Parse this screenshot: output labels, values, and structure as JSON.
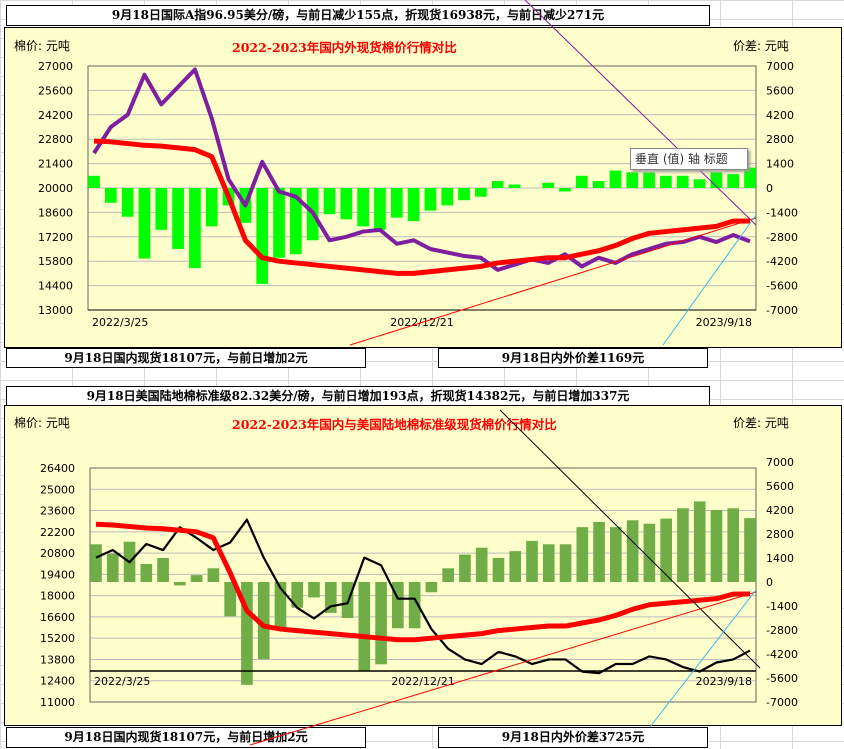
{
  "top": {
    "headline": "9月18日国际A指96.95美分/磅，与前日减少155点，折现货16938元，与前日减少271元",
    "footer_left": "9月18日国内现货18107元，与前日增加2元",
    "footer_right": "9月18日内外价差1169元"
  },
  "bottom": {
    "headline": "9月18日美国陆地棉标准级82.32美分/磅，与前日增加193点，折现货14382元，与前日增加337元",
    "footer_left": "9月18日国内现货18107元，与前日增加2元",
    "footer_right": "9月18日内外价差3725元"
  },
  "tooltip": "垂直 (值) 轴 标题",
  "chart_data": [
    {
      "type": "line+bar",
      "title": "2022-2023年国内外现货棉价行情对比",
      "ylabel": "棉价: 元吨",
      "y2label": "价差: 元吨",
      "ylim": [
        13000,
        27000
      ],
      "y2lim": [
        -7000,
        7000
      ],
      "yticks": [
        "27000",
        "25600",
        "24200",
        "22800",
        "21400",
        "20000",
        "18600",
        "17200",
        "15800",
        "14400",
        "13000"
      ],
      "y2ticks": [
        "7000",
        "5600",
        "4200",
        "2800",
        "1400",
        "0",
        "-1400",
        "-2800",
        "-4200",
        "-5600",
        "-7000"
      ],
      "xticks": [
        "2022/3/25",
        "2022/12/21",
        "2023/9/18"
      ],
      "grid": true,
      "colors": {
        "domestic": "#ff0000",
        "international": "#7f1f9f",
        "spread": "#00ff00"
      },
      "series": [
        {
          "key": "domestic",
          "type": "line",
          "values": [
            22700,
            22650,
            22550,
            22450,
            22400,
            22300,
            22200,
            21800,
            19500,
            17000,
            16000,
            15800,
            15700,
            15600,
            15500,
            15400,
            15300,
            15200,
            15100,
            15100,
            15200,
            15300,
            15400,
            15500,
            15700,
            15800,
            15900,
            16000,
            16000,
            16200,
            16400,
            16700,
            17100,
            17400,
            17500,
            17600,
            17700,
            17800,
            18100,
            18107
          ]
        },
        {
          "key": "international",
          "type": "line",
          "values": [
            22000,
            23500,
            24200,
            26500,
            24800,
            25800,
            26800,
            24000,
            20500,
            19000,
            21500,
            19800,
            19500,
            18600,
            17000,
            17200,
            17500,
            17600,
            16800,
            17000,
            16500,
            16300,
            16100,
            16000,
            15300,
            15600,
            15900,
            15700,
            16200,
            15500,
            16000,
            15700,
            16200,
            16500,
            16800,
            16900,
            17200,
            16900,
            17300,
            16938
          ]
        },
        {
          "key": "spread",
          "type": "bar",
          "axis": "y2",
          "values": [
            700,
            -850,
            -1650,
            -4050,
            -2400,
            -3500,
            -4600,
            -2200,
            -1000,
            -2000,
            -5500,
            -4000,
            -3800,
            -3000,
            -1500,
            -1800,
            -2200,
            -2400,
            -1700,
            -1900,
            -1300,
            -1000,
            -700,
            -500,
            400,
            200,
            0,
            300,
            -200,
            700,
            400,
            1000,
            900,
            900,
            700,
            700,
            500,
            900,
            800,
            1169
          ]
        }
      ]
    },
    {
      "type": "line+bar",
      "title": "2022-2023年国内与美国陆地棉标准级现货棉价行情对比",
      "ylabel": "棉价: 元吨",
      "y2label": "价差: 元吨",
      "ylim": [
        11000,
        26400
      ],
      "y2lim": [
        -7000,
        7000
      ],
      "yticks": [
        "26400",
        "25000",
        "23600",
        "22200",
        "20800",
        "19400",
        "18000",
        "16600",
        "15200",
        "13800",
        "12400",
        "11000"
      ],
      "y2ticks": [
        "7000",
        "5600",
        "4200",
        "2800",
        "1400",
        "0",
        "-1400",
        "-2800",
        "-4200",
        "-5600",
        "-7000"
      ],
      "xticks": [
        "2022/3/25",
        "2022/12/21",
        "2023/9/18"
      ],
      "grid": true,
      "colors": {
        "domestic": "#ff0000",
        "us": "#000000",
        "spread": "#70ad47"
      },
      "series": [
        {
          "key": "domestic",
          "type": "line",
          "values": [
            22700,
            22650,
            22550,
            22450,
            22400,
            22300,
            22200,
            21800,
            19500,
            17000,
            16000,
            15800,
            15700,
            15600,
            15500,
            15400,
            15300,
            15200,
            15100,
            15100,
            15200,
            15300,
            15400,
            15500,
            15700,
            15800,
            15900,
            16000,
            16000,
            16200,
            16400,
            16700,
            17100,
            17400,
            17500,
            17600,
            17700,
            17800,
            18100,
            18107
          ]
        },
        {
          "key": "us",
          "type": "line",
          "values": [
            20500,
            21000,
            20200,
            21400,
            21000,
            22500,
            21800,
            21000,
            21500,
            23000,
            20500,
            18500,
            17200,
            16500,
            17300,
            17500,
            20500,
            20000,
            17800,
            17800,
            15800,
            14500,
            13800,
            13500,
            14300,
            14000,
            13500,
            13800,
            13800,
            13000,
            12900,
            13500,
            13500,
            14000,
            13800,
            13300,
            13000,
            13600,
            13800,
            14382
          ]
        },
        {
          "key": "spread",
          "type": "bar",
          "axis": "y2",
          "values": [
            2200,
            1650,
            2350,
            1050,
            1400,
            -200,
            400,
            800,
            -2000,
            -6000,
            -4500,
            -2700,
            -1500,
            -900,
            -1800,
            -2100,
            -5200,
            -4800,
            -2700,
            -2700,
            -600,
            800,
            1600,
            2000,
            1400,
            1800,
            2400,
            2200,
            2200,
            3200,
            3500,
            3200,
            3600,
            3400,
            3700,
            4300,
            4700,
            4200,
            4300,
            3725
          ]
        }
      ]
    }
  ]
}
